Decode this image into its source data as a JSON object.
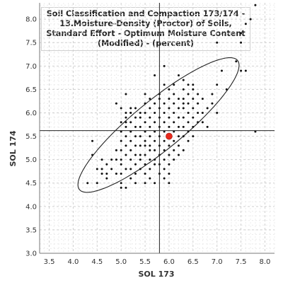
{
  "chart_data": {
    "type": "scatter",
    "title": "Soil Classification and Compaction 173/174 - 13.Moisture-Density (Proctor) of Soils, Standard Effort - Optimum Moisture Content (Modified) - (percent)",
    "xlabel": "SOL 173",
    "ylabel": "SOL 174",
    "xlim": [
      3.3,
      8.2
    ],
    "ylim": [
      3.0,
      8.35
    ],
    "x_ticks": [
      "3.5",
      "4.0",
      "4.5",
      "5.0",
      "5.5",
      "6.0",
      "6.5",
      "7.0",
      "7.5",
      "8.0"
    ],
    "y_ticks": [
      "3.0",
      "3.5",
      "4.0",
      "4.5",
      "5.0",
      "5.5",
      "6.0",
      "6.5",
      "7.0",
      "7.5",
      "8.0"
    ],
    "grid": true,
    "reference_lines": {
      "x": 5.8,
      "y": 5.62
    },
    "highlight_point": {
      "x": 6.0,
      "y": 5.5,
      "color": "#e8291c"
    },
    "ellipse": {
      "cx": 5.78,
      "cy": 5.74,
      "semi_major": 2.15,
      "semi_minor": 0.52,
      "angle_deg": 40
    },
    "points": [
      [
        4.3,
        4.5
      ],
      [
        4.4,
        5.4
      ],
      [
        4.5,
        4.8
      ],
      [
        4.6,
        4.8
      ],
      [
        4.6,
        4.7
      ],
      [
        4.7,
        4.9
      ],
      [
        4.7,
        4.6
      ],
      [
        4.8,
        5.0
      ],
      [
        4.8,
        4.8
      ],
      [
        4.9,
        5.0
      ],
      [
        4.9,
        4.7
      ],
      [
        4.9,
        5.2
      ],
      [
        5.0,
        4.4
      ],
      [
        5.0,
        4.7
      ],
      [
        5.0,
        4.9
      ],
      [
        5.0,
        5.0
      ],
      [
        5.0,
        5.2
      ],
      [
        5.0,
        5.4
      ],
      [
        5.0,
        5.6
      ],
      [
        5.0,
        5.8
      ],
      [
        5.0,
        6.1
      ],
      [
        5.0,
        4.5
      ],
      [
        5.1,
        4.4
      ],
      [
        5.1,
        4.8
      ],
      [
        5.1,
        5.1
      ],
      [
        5.1,
        5.3
      ],
      [
        5.1,
        5.5
      ],
      [
        5.1,
        5.7
      ],
      [
        5.1,
        5.9
      ],
      [
        5.1,
        6.0
      ],
      [
        5.1,
        6.4
      ],
      [
        5.2,
        4.6
      ],
      [
        5.2,
        4.8
      ],
      [
        5.2,
        5.0
      ],
      [
        5.2,
        5.2
      ],
      [
        5.2,
        5.4
      ],
      [
        5.2,
        5.6
      ],
      [
        5.2,
        5.8
      ],
      [
        5.2,
        6.0
      ],
      [
        5.2,
        6.1
      ],
      [
        5.3,
        4.5
      ],
      [
        5.3,
        4.7
      ],
      [
        5.3,
        4.9
      ],
      [
        5.3,
        5.1
      ],
      [
        5.3,
        5.3
      ],
      [
        5.3,
        5.5
      ],
      [
        5.3,
        5.7
      ],
      [
        5.3,
        5.9
      ],
      [
        5.3,
        6.1
      ],
      [
        5.4,
        4.8
      ],
      [
        5.4,
        5.0
      ],
      [
        5.4,
        5.1
      ],
      [
        5.4,
        5.3
      ],
      [
        5.4,
        5.5
      ],
      [
        5.4,
        5.7
      ],
      [
        5.4,
        5.9
      ],
      [
        5.4,
        6.0
      ],
      [
        5.5,
        4.5
      ],
      [
        5.5,
        4.7
      ],
      [
        5.5,
        4.9
      ],
      [
        5.5,
        5.1
      ],
      [
        5.5,
        5.3
      ],
      [
        5.5,
        5.4
      ],
      [
        5.5,
        5.6
      ],
      [
        5.5,
        5.8
      ],
      [
        5.5,
        6.0
      ],
      [
        5.5,
        6.2
      ],
      [
        5.5,
        6.4
      ],
      [
        5.6,
        4.6
      ],
      [
        5.6,
        4.8
      ],
      [
        5.6,
        5.0
      ],
      [
        5.6,
        5.2
      ],
      [
        5.6,
        5.3
      ],
      [
        5.6,
        5.5
      ],
      [
        5.6,
        5.7
      ],
      [
        5.6,
        5.9
      ],
      [
        5.6,
        6.1
      ],
      [
        5.6,
        6.3
      ],
      [
        5.7,
        4.5
      ],
      [
        5.7,
        4.9
      ],
      [
        5.7,
        5.0
      ],
      [
        5.7,
        5.2
      ],
      [
        5.7,
        5.4
      ],
      [
        5.7,
        5.6
      ],
      [
        5.7,
        5.8
      ],
      [
        5.7,
        6.0
      ],
      [
        5.7,
        6.2
      ],
      [
        5.7,
        6.8
      ],
      [
        5.8,
        4.7
      ],
      [
        5.8,
        4.9
      ],
      [
        5.8,
        5.1
      ],
      [
        5.8,
        5.3
      ],
      [
        5.8,
        5.5
      ],
      [
        5.8,
        5.7
      ],
      [
        5.8,
        5.9
      ],
      [
        5.8,
        6.1
      ],
      [
        5.8,
        6.3
      ],
      [
        5.8,
        6.4
      ],
      [
        5.9,
        4.6
      ],
      [
        5.9,
        4.8
      ],
      [
        5.9,
        5.0
      ],
      [
        5.9,
        5.2
      ],
      [
        5.9,
        5.4
      ],
      [
        5.9,
        5.6
      ],
      [
        5.9,
        5.8
      ],
      [
        5.9,
        6.0
      ],
      [
        5.9,
        6.2
      ],
      [
        5.9,
        6.6
      ],
      [
        6.0,
        4.5
      ],
      [
        6.0,
        4.7
      ],
      [
        6.0,
        4.9
      ],
      [
        6.0,
        5.1
      ],
      [
        6.0,
        5.3
      ],
      [
        6.0,
        5.7
      ],
      [
        6.0,
        5.9
      ],
      [
        6.0,
        6.1
      ],
      [
        6.0,
        6.3
      ],
      [
        6.0,
        6.5
      ],
      [
        6.1,
        5.0
      ],
      [
        6.1,
        5.2
      ],
      [
        6.1,
        5.4
      ],
      [
        6.1,
        5.6
      ],
      [
        6.1,
        5.8
      ],
      [
        6.1,
        6.0
      ],
      [
        6.1,
        6.2
      ],
      [
        6.1,
        6.4
      ],
      [
        6.1,
        6.6
      ],
      [
        6.2,
        5.1
      ],
      [
        6.2,
        5.3
      ],
      [
        6.2,
        5.5
      ],
      [
        6.2,
        5.7
      ],
      [
        6.2,
        5.9
      ],
      [
        6.2,
        6.1
      ],
      [
        6.2,
        6.3
      ],
      [
        6.2,
        6.8
      ],
      [
        6.3,
        5.2
      ],
      [
        6.3,
        5.5
      ],
      [
        6.3,
        5.7
      ],
      [
        6.3,
        5.9
      ],
      [
        6.3,
        6.1
      ],
      [
        6.3,
        6.3
      ],
      [
        6.3,
        6.5
      ],
      [
        6.3,
        6.7
      ],
      [
        6.4,
        5.4
      ],
      [
        6.4,
        5.6
      ],
      [
        6.4,
        5.8
      ],
      [
        6.4,
        6.0
      ],
      [
        6.4,
        6.2
      ],
      [
        6.4,
        6.4
      ],
      [
        6.4,
        6.6
      ],
      [
        6.5,
        5.5
      ],
      [
        6.5,
        5.7
      ],
      [
        6.5,
        5.9
      ],
      [
        6.5,
        6.1
      ],
      [
        6.5,
        6.3
      ],
      [
        6.5,
        6.5
      ],
      [
        6.6,
        5.8
      ],
      [
        6.6,
        6.0
      ],
      [
        6.6,
        6.2
      ],
      [
        6.6,
        6.4
      ],
      [
        6.7,
        6.0
      ],
      [
        6.7,
        6.3
      ],
      [
        6.8,
        5.7
      ],
      [
        6.8,
        6.1
      ],
      [
        6.9,
        6.4
      ],
      [
        7.0,
        6.0
      ],
      [
        7.0,
        6.6
      ],
      [
        7.0,
        7.5
      ],
      [
        7.1,
        6.9
      ],
      [
        7.2,
        6.5
      ],
      [
        7.4,
        7.1
      ],
      [
        7.5,
        7.7
      ],
      [
        7.5,
        7.5
      ],
      [
        7.5,
        6.9
      ],
      [
        7.6,
        7.9
      ],
      [
        7.6,
        6.9
      ],
      [
        7.7,
        8.0
      ],
      [
        7.8,
        8.3
      ],
      [
        7.8,
        5.6
      ],
      [
        4.9,
        6.2
      ],
      [
        4.4,
        5.1
      ],
      [
        4.7,
        4.7
      ],
      [
        5.2,
        6.0
      ],
      [
        5.1,
        5.8
      ],
      [
        6.7,
        5.8
      ],
      [
        5.9,
        7.0
      ],
      [
        6.9,
        6.2
      ],
      [
        6.3,
        6.2
      ],
      [
        6.5,
        6.6
      ],
      [
        4.6,
        5.0
      ],
      [
        4.5,
        4.5
      ]
    ]
  }
}
